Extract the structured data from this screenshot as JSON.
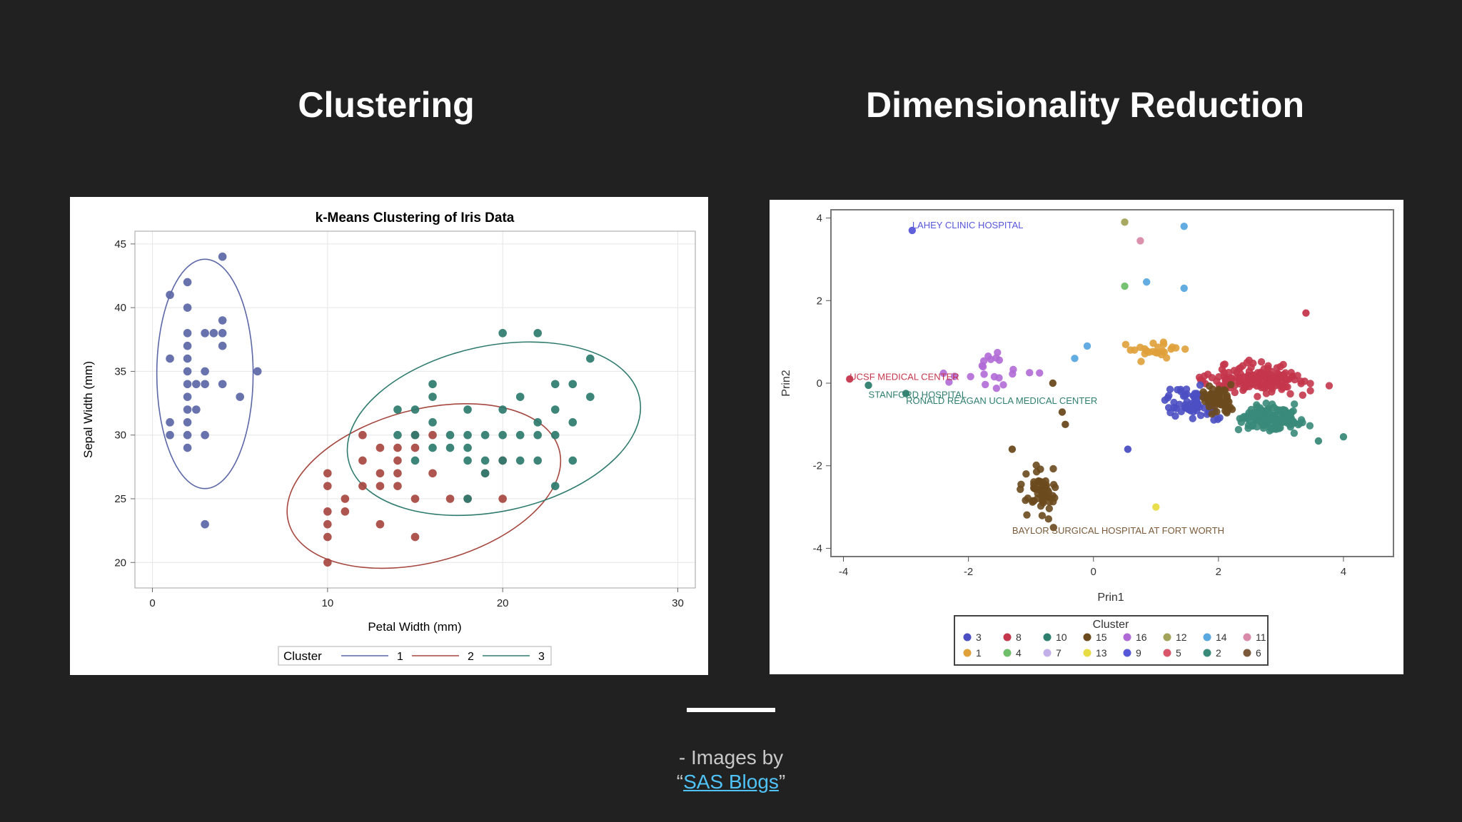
{
  "slide": {
    "left_heading": "Clustering",
    "right_heading": "Dimensionality Reduction",
    "credit_prefix": "- Images by",
    "credit_open_quote": "“",
    "credit_link": "SAS Blogs",
    "credit_close_quote": "”"
  },
  "chart_data": [
    {
      "type": "scatter",
      "title": "k-Means Clustering of Iris Data",
      "xlabel": "Petal Width (mm)",
      "ylabel": "Sepal Width (mm)",
      "xlim": [
        -1,
        31
      ],
      "ylim": [
        18,
        46
      ],
      "xticks": [
        0,
        10,
        20,
        30
      ],
      "yticks": [
        20,
        25,
        30,
        35,
        40,
        45
      ],
      "grid": true,
      "legend_title": "Cluster",
      "legend_position": "bottom",
      "series": [
        {
          "name": "1",
          "color": "#5b67a6",
          "points": [
            [
              1,
              41
            ],
            [
              2,
              42
            ],
            [
              2,
              40
            ],
            [
              4,
              44
            ],
            [
              2,
              38
            ],
            [
              3,
              38
            ],
            [
              3.5,
              38
            ],
            [
              4,
              38
            ],
            [
              4,
              39
            ],
            [
              2,
              37
            ],
            [
              4,
              37
            ],
            [
              1,
              36
            ],
            [
              2,
              36
            ],
            [
              2,
              35
            ],
            [
              3,
              35
            ],
            [
              4,
              34
            ],
            [
              2,
              34
            ],
            [
              2.5,
              34
            ],
            [
              6,
              35
            ],
            [
              5,
              33
            ],
            [
              2,
              33
            ],
            [
              3,
              34
            ],
            [
              2,
              32
            ],
            [
              2,
              31
            ],
            [
              1,
              30
            ],
            [
              2,
              30
            ],
            [
              3,
              30
            ],
            [
              2,
              29
            ],
            [
              1,
              31
            ],
            [
              2.5,
              32
            ],
            [
              3,
              23
            ]
          ],
          "ellipse": {
            "cx": 3,
            "cy": 34.8,
            "rx": 2.75,
            "ry": 9,
            "angle_deg": 0
          }
        },
        {
          "name": "2",
          "color": "#a6473f",
          "points": [
            [
              10,
              27
            ],
            [
              10,
              26
            ],
            [
              11,
              25
            ],
            [
              10,
              24
            ],
            [
              11,
              24
            ],
            [
              10,
              23
            ],
            [
              10,
              22
            ],
            [
              10,
              20
            ],
            [
              12,
              30
            ],
            [
              12,
              28
            ],
            [
              13,
              27
            ],
            [
              12,
              26
            ],
            [
              13,
              26
            ],
            [
              13,
              23
            ],
            [
              14,
              29
            ],
            [
              14,
              27
            ],
            [
              14,
              26
            ],
            [
              15,
              29
            ],
            [
              15,
              30
            ],
            [
              15,
              25
            ],
            [
              15,
              22
            ],
            [
              16,
              27
            ],
            [
              17,
              25
            ],
            [
              18,
              25
            ],
            [
              19,
              27
            ],
            [
              20,
              25
            ],
            [
              20,
              28
            ],
            [
              14,
              28
            ],
            [
              13,
              29
            ],
            [
              16,
              30
            ]
          ],
          "ellipse": {
            "cx": 15.5,
            "cy": 26.0,
            "rx": 8.0,
            "ry": 6.0,
            "angle_deg": 15
          }
        },
        {
          "name": "3",
          "color": "#2e7b6e",
          "points": [
            [
              14,
              32
            ],
            [
              15,
              32
            ],
            [
              16,
              34
            ],
            [
              16,
              33
            ],
            [
              18,
              32
            ],
            [
              20,
              32
            ],
            [
              21,
              33
            ],
            [
              23,
              34
            ],
            [
              24,
              34
            ],
            [
              25,
              33
            ],
            [
              25,
              36
            ],
            [
              22,
              38
            ],
            [
              20,
              38
            ],
            [
              14,
              30
            ],
            [
              15,
              30
            ],
            [
              17,
              30
            ],
            [
              18,
              30
            ],
            [
              19,
              30
            ],
            [
              20,
              30
            ],
            [
              21,
              30
            ],
            [
              22,
              30
            ],
            [
              23,
              30
            ],
            [
              24,
              31
            ],
            [
              19,
              28
            ],
            [
              19,
              27
            ],
            [
              18,
              28
            ],
            [
              18,
              29
            ],
            [
              17,
              29
            ],
            [
              16,
              29
            ],
            [
              15,
              28
            ],
            [
              21,
              28
            ],
            [
              22,
              28
            ],
            [
              24,
              28
            ],
            [
              23,
              26
            ],
            [
              20,
              28
            ],
            [
              23,
              32
            ],
            [
              22,
              31
            ],
            [
              18,
              25
            ],
            [
              16,
              31
            ]
          ],
          "ellipse": {
            "cx": 19.5,
            "cy": 30.5,
            "rx": 8.5,
            "ry": 6.5,
            "angle_deg": 12
          }
        }
      ]
    },
    {
      "type": "scatter",
      "xlabel": "Prin1",
      "ylabel": "Prin2",
      "xlim": [
        -4.2,
        4.8
      ],
      "ylim": [
        -4.2,
        4.2
      ],
      "xticks": [
        -4,
        -2,
        0,
        2,
        4
      ],
      "yticks": [
        -4,
        -2,
        0,
        2,
        4
      ],
      "grid": false,
      "legend_title": "Cluster",
      "legend_position": "bottom",
      "legend_entries": [
        {
          "name": "3",
          "color": "#4b4fc2"
        },
        {
          "name": "8",
          "color": "#c4364c"
        },
        {
          "name": "10",
          "color": "#2f7f6f"
        },
        {
          "name": "15",
          "color": "#6b4a1e"
        },
        {
          "name": "16",
          "color": "#b06ad6"
        },
        {
          "name": "12",
          "color": "#a3a35a"
        },
        {
          "name": "14",
          "color": "#5aa8e0"
        },
        {
          "name": "11",
          "color": "#d98aa8"
        },
        {
          "name": "1",
          "color": "#e0a03a"
        },
        {
          "name": "4",
          "color": "#6fbf6a"
        },
        {
          "name": "7",
          "color": "#c4b0e8"
        },
        {
          "name": "13",
          "color": "#e8dc44"
        },
        {
          "name": "9",
          "color": "#5757d9"
        },
        {
          "name": "5",
          "color": "#d9566a"
        },
        {
          "name": "2",
          "color": "#3a8a7a"
        },
        {
          "name": "6",
          "color": "#7a5a3a"
        }
      ],
      "annotations": [
        {
          "text": "LAHEY CLINIC HOSPITAL",
          "x": -2.9,
          "y": 3.75,
          "color": "#5757d9"
        },
        {
          "text": "UCSF MEDICAL CENTER",
          "x": -3.9,
          "y": 0.08,
          "color": "#c4364c"
        },
        {
          "text": "STANFORD HOSPITAL",
          "x": -3.6,
          "y": -0.35,
          "color": "#2f7f6f"
        },
        {
          "text": "RONALD REAGAN UCLA MEDICAL CENTER",
          "x": -3.0,
          "y": -0.5,
          "color": "#2f7f6f"
        },
        {
          "text": "BAYLOR SURGICAL HOSPITAL AT FORT WORTH",
          "x": -1.3,
          "y": -3.65,
          "color": "#7a5a3a"
        }
      ],
      "clusters": [
        {
          "name": "8",
          "color": "#c4364c",
          "cx": 2.6,
          "cy": 0.1,
          "sx": 0.9,
          "sy": 0.35,
          "n": 170
        },
        {
          "name": "2",
          "color": "#3a8a7a",
          "cx": 2.8,
          "cy": -0.85,
          "sx": 0.55,
          "sy": 0.3,
          "n": 150
        },
        {
          "name": "3",
          "color": "#4b4fc2",
          "cx": 1.6,
          "cy": -0.45,
          "sx": 0.45,
          "sy": 0.4,
          "n": 70
        },
        {
          "name": "6",
          "color": "#6b4a1e",
          "cx": 2.0,
          "cy": -0.4,
          "sx": 0.3,
          "sy": 0.3,
          "n": 60
        },
        {
          "name": "15",
          "color": "#6b4a1e",
          "cx": -0.85,
          "cy": -2.6,
          "sx": 0.3,
          "sy": 0.6,
          "n": 55
        },
        {
          "name": "1",
          "color": "#e0a03a",
          "cx": 1.0,
          "cy": 0.8,
          "sx": 0.6,
          "sy": 0.25,
          "n": 25
        },
        {
          "name": "16",
          "color": "#b06ad6",
          "cx": -1.5,
          "cy": 0.3,
          "sx": 0.7,
          "sy": 0.4,
          "n": 22
        }
      ],
      "points": [
        {
          "x": -2.9,
          "y": 3.7,
          "color": "#5757d9"
        },
        {
          "x": 0.5,
          "y": 3.9,
          "color": "#a3a35a"
        },
        {
          "x": 1.45,
          "y": 3.8,
          "color": "#5aa8e0"
        },
        {
          "x": 0.75,
          "y": 3.45,
          "color": "#d98aa8"
        },
        {
          "x": 0.5,
          "y": 2.35,
          "color": "#6fbf6a"
        },
        {
          "x": 0.85,
          "y": 2.45,
          "color": "#5aa8e0"
        },
        {
          "x": 1.45,
          "y": 2.3,
          "color": "#5aa8e0"
        },
        {
          "x": -3.9,
          "y": 0.1,
          "color": "#c4364c"
        },
        {
          "x": -3.6,
          "y": -0.05,
          "color": "#2f7f6f"
        },
        {
          "x": -3.0,
          "y": -0.25,
          "color": "#2f7f6f"
        },
        {
          "x": 1.0,
          "y": -3.0,
          "color": "#e8dc44"
        },
        {
          "x": -0.1,
          "y": 0.9,
          "color": "#5aa8e0"
        },
        {
          "x": -0.3,
          "y": 0.6,
          "color": "#5aa8e0"
        },
        {
          "x": 3.4,
          "y": 1.7,
          "color": "#c4364c"
        },
        {
          "x": 3.6,
          "y": -1.4,
          "color": "#3a8a7a"
        },
        {
          "x": 4.0,
          "y": -1.3,
          "color": "#3a8a7a"
        },
        {
          "x": 0.55,
          "y": -1.6,
          "color": "#4b4fc2"
        },
        {
          "x": -1.3,
          "y": -1.6,
          "color": "#6b4a1e"
        },
        {
          "x": -0.5,
          "y": -0.7,
          "color": "#6b4a1e"
        },
        {
          "x": -0.65,
          "y": 0.0,
          "color": "#6b4a1e"
        },
        {
          "x": -0.45,
          "y": -1.0,
          "color": "#6b4a1e"
        }
      ]
    }
  ]
}
